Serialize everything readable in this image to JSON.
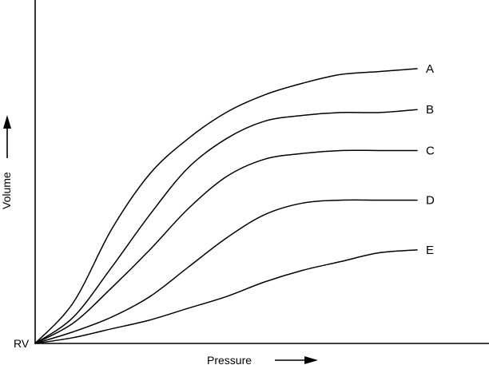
{
  "chart_data": {
    "type": "line",
    "title": "",
    "xlabel": "Pressure",
    "ylabel": "Volume",
    "origin_label": "RV",
    "grid": false,
    "legend": "none",
    "colors": {
      "line": "#000000",
      "background": "#ffffff"
    },
    "series": [
      {
        "name": "A",
        "x": [
          0,
          0.1,
          0.2,
          0.3,
          0.4,
          0.5,
          0.6,
          0.7,
          0.8,
          0.9,
          1.0
        ],
        "y": [
          0,
          0.14,
          0.39,
          0.58,
          0.7,
          0.79,
          0.85,
          0.89,
          0.92,
          0.93,
          0.94
        ]
      },
      {
        "name": "B",
        "x": [
          0,
          0.1,
          0.2,
          0.3,
          0.4,
          0.5,
          0.6,
          0.7,
          0.8,
          0.9,
          1.0
        ],
        "y": [
          0,
          0.09,
          0.26,
          0.44,
          0.6,
          0.7,
          0.76,
          0.78,
          0.79,
          0.79,
          0.8
        ]
      },
      {
        "name": "C",
        "x": [
          0,
          0.1,
          0.2,
          0.3,
          0.4,
          0.5,
          0.6,
          0.7,
          0.8,
          0.9,
          1.0
        ],
        "y": [
          0,
          0.07,
          0.19,
          0.32,
          0.46,
          0.57,
          0.63,
          0.65,
          0.66,
          0.66,
          0.66
        ]
      },
      {
        "name": "D",
        "x": [
          0,
          0.1,
          0.2,
          0.3,
          0.4,
          0.5,
          0.6,
          0.7,
          0.8,
          0.9,
          1.0
        ],
        "y": [
          0,
          0.04,
          0.09,
          0.16,
          0.26,
          0.36,
          0.44,
          0.48,
          0.49,
          0.49,
          0.49
        ]
      },
      {
        "name": "E",
        "x": [
          0,
          0.1,
          0.2,
          0.3,
          0.4,
          0.5,
          0.6,
          0.7,
          0.8,
          0.9,
          1.0
        ],
        "y": [
          0,
          0.02,
          0.05,
          0.08,
          0.12,
          0.16,
          0.21,
          0.25,
          0.28,
          0.31,
          0.32
        ]
      }
    ]
  }
}
